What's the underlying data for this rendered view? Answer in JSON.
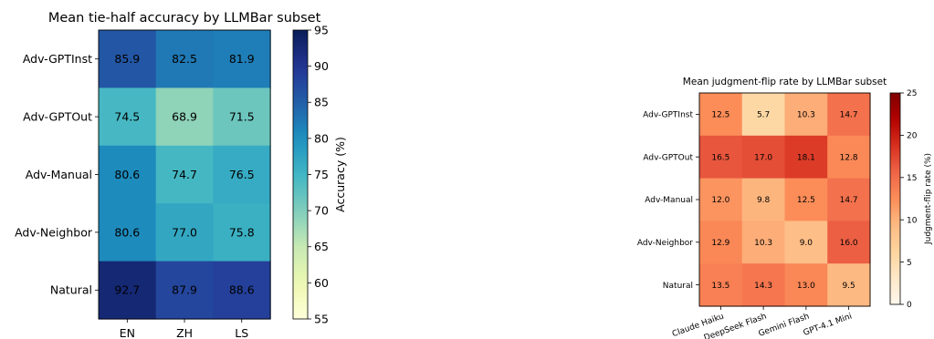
{
  "chart_data": [
    {
      "type": "heatmap",
      "title": "Mean tie-half accuracy by LLMBar subset",
      "xlabel": "",
      "ylabel": "",
      "columns": [
        "EN",
        "ZH",
        "LS"
      ],
      "rows": [
        "Adv-GPTInst",
        "Adv-GPTOut",
        "Adv-Manual",
        "Adv-Neighbor",
        "Natural"
      ],
      "values": [
        [
          85.9,
          82.5,
          81.9
        ],
        [
          74.5,
          68.9,
          71.5
        ],
        [
          80.6,
          74.7,
          76.5
        ],
        [
          80.6,
          77.0,
          75.8
        ],
        [
          92.7,
          87.9,
          88.6
        ]
      ],
      "value_labels": [
        [
          "85.9",
          "82.5",
          "81.9"
        ],
        [
          "74.5",
          "68.9",
          "71.5"
        ],
        [
          "80.6",
          "74.7",
          "76.5"
        ],
        [
          "80.6",
          "77.0",
          "75.8"
        ],
        [
          "92.7",
          "87.9",
          "88.6"
        ]
      ],
      "colormap": "YlGnBu",
      "vmin": 55,
      "vmax": 95,
      "colorbar": {
        "label": "Accuracy (%)",
        "ticks": [
          55,
          60,
          65,
          70,
          75,
          80,
          85,
          90,
          95
        ],
        "tick_labels": [
          "55",
          "60",
          "65",
          "70",
          "75",
          "80",
          "85",
          "90",
          "95"
        ]
      },
      "grid": false
    },
    {
      "type": "heatmap",
      "title": "Mean judgment-flip rate by LLMBar subset",
      "xlabel": "",
      "ylabel": "",
      "columns": [
        "Claude Haiku",
        "DeepSeek Flash",
        "Gemini Flash",
        "GPT-4.1 Mini"
      ],
      "rows": [
        "Adv-GPTInst",
        "Adv-GPTOut",
        "Adv-Manual",
        "Adv-Neighbor",
        "Natural"
      ],
      "values": [
        [
          12.5,
          5.7,
          10.3,
          14.7
        ],
        [
          16.5,
          17.0,
          18.1,
          12.8
        ],
        [
          12.0,
          9.8,
          12.5,
          14.7
        ],
        [
          12.9,
          10.3,
          9.0,
          16.0
        ],
        [
          13.5,
          14.3,
          13.0,
          9.5
        ]
      ],
      "value_labels": [
        [
          "12.5",
          "5.7",
          "10.3",
          "14.7"
        ],
        [
          "16.5",
          "17.0",
          "18.1",
          "12.8"
        ],
        [
          "12.0",
          "9.8",
          "12.5",
          "14.7"
        ],
        [
          "12.9",
          "10.3",
          "9.0",
          "16.0"
        ],
        [
          "13.5",
          "14.3",
          "13.0",
          "9.5"
        ]
      ],
      "colormap": "OrRd",
      "vmin": 0,
      "vmax": 25,
      "colorbar": {
        "label": "Judgment-flip rate (%)",
        "ticks": [
          0,
          5,
          10,
          15,
          20,
          25
        ],
        "tick_labels": [
          "0",
          "5",
          "10",
          "15",
          "20",
          "25"
        ]
      },
      "x_tick_rotation": "angled",
      "grid": false
    }
  ]
}
